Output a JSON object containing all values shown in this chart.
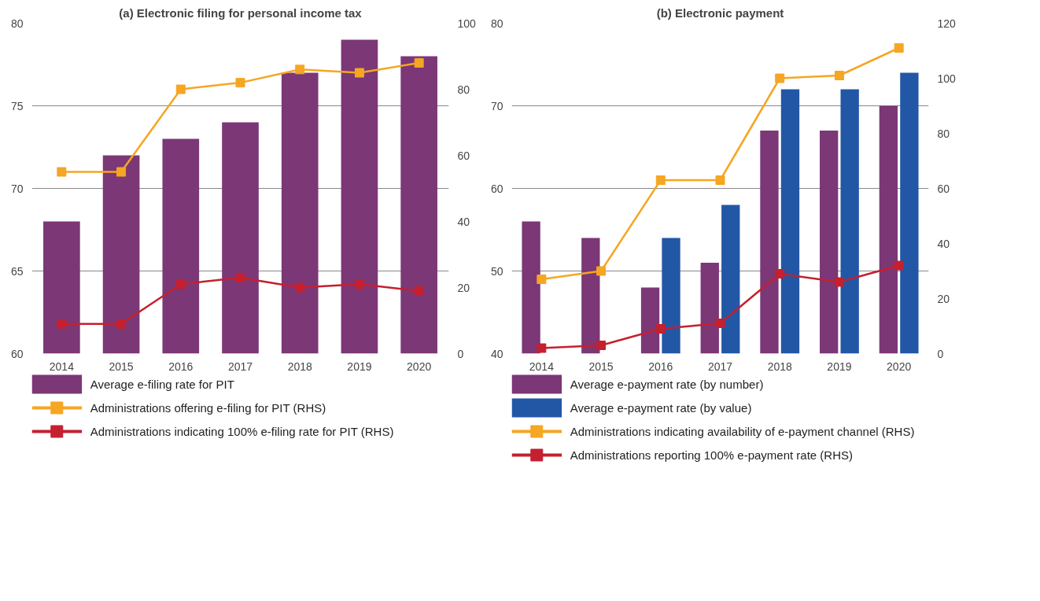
{
  "chart_data": [
    {
      "type": "bar",
      "title": "(a) Electronic filing for personal income tax",
      "categories": [
        "2014",
        "2015",
        "2016",
        "2017",
        "2018",
        "2019",
        "2020"
      ],
      "ylim": [
        60,
        80
      ],
      "yticks": [
        60,
        65,
        70,
        75,
        80
      ],
      "y2lim": [
        0,
        100
      ],
      "y2ticks": [
        0,
        20,
        40,
        60,
        80,
        100
      ],
      "grid": "y",
      "legend": "bottom",
      "marker": "square",
      "series": [
        {
          "name": "Average e-filing rate for PIT",
          "color": "#7b3776",
          "values": [
            68,
            72,
            73,
            74,
            77,
            79,
            78
          ]
        },
        {
          "type": "line",
          "axis": "y2",
          "name": "Administrations offering e-filing for PIT (RHS)",
          "color": "#f5a623",
          "values": [
            55,
            55,
            80,
            82,
            86,
            85,
            88
          ]
        },
        {
          "type": "line",
          "axis": "y2",
          "name": "Administrations indicating 100% e-filing rate for PIT (RHS)",
          "color": "#c4202f",
          "values": [
            9,
            9,
            21,
            23,
            20,
            21,
            19
          ]
        }
      ]
    },
    {
      "type": "bar",
      "title": "(b) Electronic payment",
      "categories": [
        "2014",
        "2015",
        "2016",
        "2017",
        "2018",
        "2019",
        "2020"
      ],
      "ylim": [
        40,
        80
      ],
      "yticks": [
        40,
        50,
        60,
        70,
        80
      ],
      "y2lim": [
        0,
        120
      ],
      "y2ticks": [
        0,
        20,
        40,
        60,
        80,
        100,
        120
      ],
      "grid": "y",
      "legend": "bottom",
      "marker": "square",
      "series": [
        {
          "name": "Average e-payment rate (by number)",
          "color": "#7b3776",
          "values": [
            56,
            54,
            48,
            51,
            67,
            67,
            70
          ]
        },
        {
          "name": "Average e-payment rate (by value)",
          "color": "#2257a6",
          "values": [
            null,
            null,
            54,
            58,
            72,
            72,
            74
          ]
        },
        {
          "type": "line",
          "axis": "y2",
          "name": "Administrations indicating availability of e-payment channel (RHS)",
          "color": "#f5a623",
          "values": [
            27,
            30,
            63,
            63,
            100,
            101,
            111
          ]
        },
        {
          "type": "line",
          "axis": "y2",
          "name": "Administrations reporting 100% e-payment rate (RHS)",
          "color": "#c4202f",
          "values": [
            2,
            3,
            9,
            11,
            29,
            26,
            32
          ]
        }
      ]
    }
  ]
}
